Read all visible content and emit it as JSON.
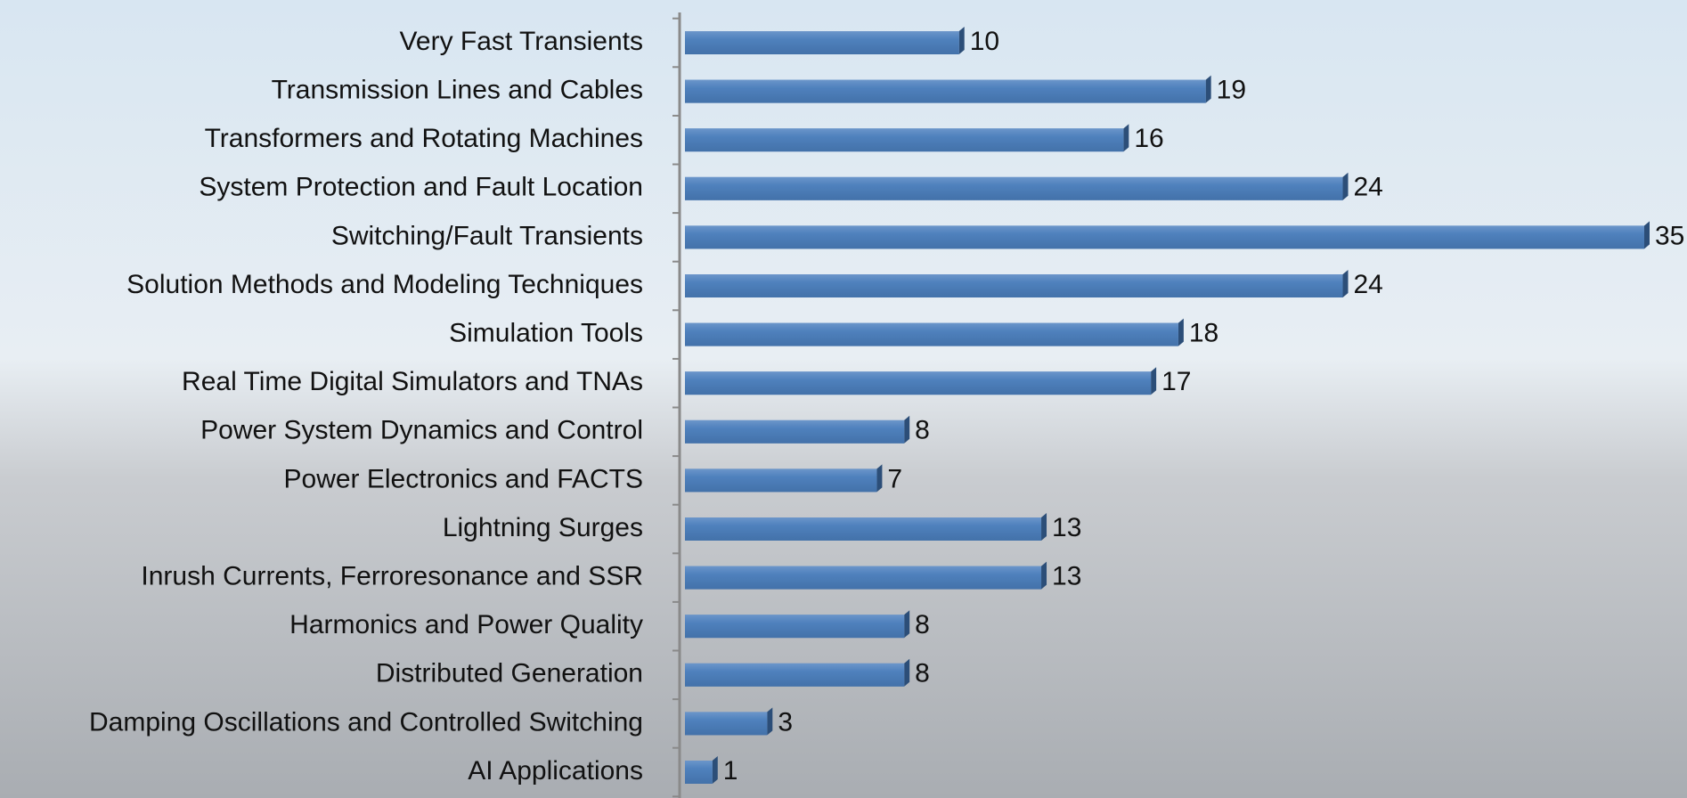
{
  "chart_data": {
    "type": "hbar",
    "categories": [
      "Very Fast Transients",
      "Transmission Lines and Cables",
      "Transformers and Rotating Machines",
      "System Protection and Fault Location",
      "Switching/Fault Transients",
      "Solution Methods and Modeling Techniques",
      "Simulation Tools",
      "Real Time Digital Simulators and TNAs",
      "Power System Dynamics and Control",
      "Power Electronics and FACTS",
      "Lightning Surges",
      "Inrush Currents, Ferroresonance and SSR",
      "Harmonics and Power Quality",
      "Distributed Generation",
      "Damping Oscillations and Controlled Switching",
      "AI Applications"
    ],
    "values": [
      10,
      19,
      16,
      24,
      35,
      24,
      18,
      17,
      8,
      7,
      13,
      13,
      8,
      8,
      3,
      1
    ],
    "color": "#4f81bd",
    "xlim": [
      0,
      35
    ]
  }
}
